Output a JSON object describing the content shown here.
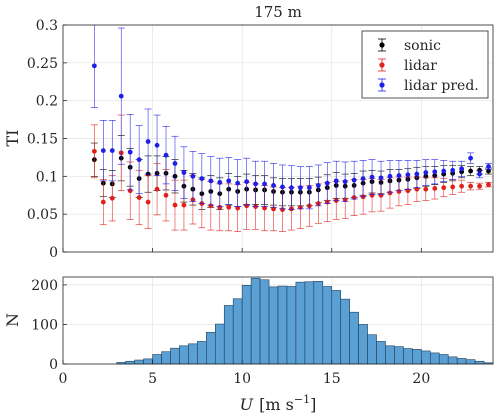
{
  "chart_data": [
    {
      "type": "scatter",
      "title": "175 m",
      "ylabel": "TI",
      "xlim": [
        0,
        24
      ],
      "ylim": [
        0,
        0.3
      ],
      "y_ticks": [
        "0",
        "0.05",
        "0.1",
        "0.15",
        "0.2",
        "0.25",
        "0.3"
      ],
      "y_tick_values": [
        0,
        0.05,
        0.1,
        0.15,
        0.2,
        0.25,
        0.3
      ],
      "grid": true,
      "legend_position": "top-right",
      "series": [
        {
          "name": "sonic",
          "color": "#000000",
          "x": [
            1.75,
            2.25,
            2.75,
            3.25,
            3.75,
            4.25,
            4.75,
            5.25,
            5.75,
            6.25,
            6.75,
            7.25,
            7.75,
            8.25,
            8.75,
            9.25,
            9.75,
            10.25,
            10.75,
            11.25,
            11.75,
            12.25,
            12.75,
            13.25,
            13.75,
            14.25,
            14.75,
            15.25,
            15.75,
            16.25,
            16.75,
            17.25,
            17.75,
            18.25,
            18.75,
            19.25,
            19.75,
            20.25,
            20.75,
            21.25,
            21.75,
            22.25,
            22.75,
            23.25,
            23.75
          ],
          "y": [
            0.122,
            0.091,
            0.09,
            0.124,
            0.112,
            0.097,
            0.103,
            0.104,
            0.104,
            0.1,
            0.087,
            0.083,
            0.077,
            0.08,
            0.077,
            0.083,
            0.08,
            0.083,
            0.082,
            0.082,
            0.08,
            0.079,
            0.079,
            0.079,
            0.079,
            0.082,
            0.085,
            0.088,
            0.087,
            0.088,
            0.091,
            0.093,
            0.092,
            0.094,
            0.095,
            0.096,
            0.098,
            0.1,
            0.101,
            0.103,
            0.104,
            0.106,
            0.107,
            0.108,
            0.107
          ],
          "err": [
            0.022,
            0.018,
            0.018,
            0.03,
            0.025,
            0.025,
            0.024,
            0.023,
            0.022,
            0.022,
            0.021,
            0.021,
            0.021,
            0.021,
            0.021,
            0.021,
            0.02,
            0.02,
            0.019,
            0.019,
            0.018,
            0.018,
            0.018,
            0.018,
            0.018,
            0.017,
            0.017,
            0.017,
            0.016,
            0.016,
            0.016,
            0.015,
            0.015,
            0.015,
            0.014,
            0.014,
            0.014,
            0.013,
            0.012,
            0.011,
            0.01,
            0.008,
            0.006,
            0.005,
            0.004
          ]
        },
        {
          "name": "lidar",
          "color": "#e0201b",
          "x": [
            1.75,
            2.25,
            2.75,
            3.25,
            3.75,
            4.25,
            4.75,
            5.25,
            5.75,
            6.25,
            6.75,
            7.25,
            7.75,
            8.25,
            8.75,
            9.25,
            9.75,
            10.25,
            10.75,
            11.25,
            11.75,
            12.25,
            12.75,
            13.25,
            13.75,
            14.25,
            14.75,
            15.25,
            15.75,
            16.25,
            16.75,
            17.25,
            17.75,
            18.25,
            18.75,
            19.25,
            19.75,
            20.25,
            20.75,
            21.25,
            21.75,
            22.25,
            22.75,
            23.25,
            23.75
          ],
          "y": [
            0.133,
            0.066,
            0.071,
            0.131,
            0.081,
            0.072,
            0.066,
            0.083,
            0.075,
            0.062,
            0.062,
            0.069,
            0.064,
            0.061,
            0.059,
            0.059,
            0.058,
            0.061,
            0.06,
            0.058,
            0.057,
            0.056,
            0.057,
            0.059,
            0.061,
            0.064,
            0.066,
            0.068,
            0.069,
            0.072,
            0.073,
            0.075,
            0.075,
            0.078,
            0.08,
            0.081,
            0.083,
            0.083,
            0.084,
            0.085,
            0.086,
            0.087,
            0.087,
            0.087,
            0.089
          ],
          "err": [
            0.035,
            0.03,
            0.03,
            0.05,
            0.038,
            0.036,
            0.035,
            0.034,
            0.034,
            0.033,
            0.033,
            0.032,
            0.032,
            0.032,
            0.031,
            0.031,
            0.031,
            0.031,
            0.03,
            0.03,
            0.029,
            0.029,
            0.028,
            0.028,
            0.027,
            0.026,
            0.026,
            0.025,
            0.025,
            0.024,
            0.023,
            0.022,
            0.021,
            0.02,
            0.019,
            0.018,
            0.016,
            0.015,
            0.014,
            0.012,
            0.01,
            0.008,
            0.005,
            0.004,
            0.003
          ]
        },
        {
          "name": "lidar pred.",
          "color": "#1f1fe6",
          "x": [
            1.75,
            2.25,
            2.75,
            3.25,
            3.75,
            4.25,
            4.75,
            5.25,
            5.75,
            6.25,
            6.75,
            7.25,
            7.75,
            8.25,
            8.75,
            9.25,
            9.75,
            10.25,
            10.75,
            11.25,
            11.75,
            12.25,
            12.75,
            13.25,
            13.75,
            14.25,
            14.75,
            15.25,
            15.75,
            16.25,
            16.75,
            17.25,
            17.75,
            18.25,
            18.75,
            19.25,
            19.75,
            20.25,
            20.75,
            21.25,
            21.75,
            22.25,
            22.75,
            23.25,
            23.75
          ],
          "y": [
            0.246,
            0.134,
            0.134,
            0.206,
            0.132,
            0.122,
            0.146,
            0.141,
            0.128,
            0.117,
            0.105,
            0.1,
            0.097,
            0.094,
            0.092,
            0.094,
            0.091,
            0.093,
            0.09,
            0.09,
            0.088,
            0.086,
            0.085,
            0.085,
            0.085,
            0.088,
            0.091,
            0.094,
            0.093,
            0.095,
            0.097,
            0.099,
            0.098,
            0.1,
            0.101,
            0.102,
            0.103,
            0.105,
            0.106,
            0.107,
            0.108,
            0.11,
            0.124,
            0.103,
            0.113
          ],
          "err": [
            0.055,
            0.04,
            0.04,
            0.09,
            0.05,
            0.045,
            0.043,
            0.04,
            0.038,
            0.036,
            0.034,
            0.033,
            0.033,
            0.032,
            0.032,
            0.031,
            0.031,
            0.031,
            0.03,
            0.03,
            0.029,
            0.029,
            0.029,
            0.028,
            0.028,
            0.027,
            0.027,
            0.026,
            0.026,
            0.025,
            0.024,
            0.023,
            0.022,
            0.021,
            0.02,
            0.019,
            0.018,
            0.017,
            0.016,
            0.014,
            0.012,
            0.01,
            0.007,
            0.005,
            0.004
          ]
        }
      ]
    },
    {
      "type": "bar",
      "ylabel": "N",
      "xlabel_symbol": "U",
      "xlabel_units": "[m s",
      "xlabel_exponent": "−1",
      "xlabel_close": "]",
      "xlim": [
        0,
        24
      ],
      "ylim": [
        0,
        220
      ],
      "x_ticks": [
        "0",
        "5",
        "10",
        "15",
        "20"
      ],
      "x_tick_values": [
        0,
        5,
        10,
        15,
        20
      ],
      "y_ticks": [
        "0",
        "100",
        "200"
      ],
      "y_tick_values": [
        0,
        100,
        200
      ],
      "grid": true,
      "bar_color": "#5aa0d5",
      "bin_width": 0.5,
      "bin_starts": [
        3,
        3.5,
        4,
        4.5,
        5,
        5.5,
        6,
        6.5,
        7,
        7.5,
        8,
        8.5,
        9,
        9.5,
        10,
        10.5,
        11,
        11.5,
        12,
        12.5,
        13,
        13.5,
        14,
        14.5,
        15,
        15.5,
        16,
        16.5,
        17,
        17.5,
        18,
        18.5,
        19,
        19.5,
        20,
        20.5,
        21,
        21.5,
        22,
        22.5,
        23,
        23.5
      ],
      "values": [
        4,
        7,
        10,
        13,
        24,
        31,
        40,
        46,
        51,
        57,
        80,
        101,
        148,
        165,
        199,
        217,
        213,
        195,
        197,
        196,
        207,
        208,
        209,
        196,
        186,
        164,
        131,
        100,
        74,
        57,
        46,
        44,
        39,
        37,
        33,
        28,
        24,
        18,
        14,
        11,
        7,
        3
      ]
    }
  ]
}
